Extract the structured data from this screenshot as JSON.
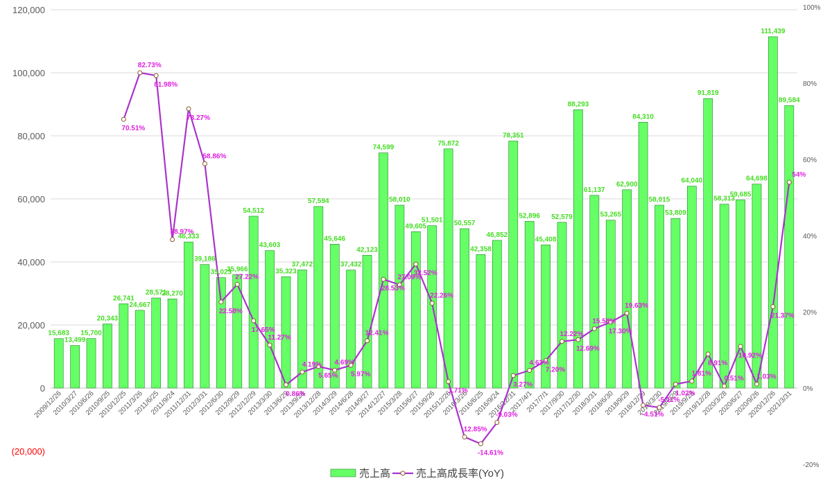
{
  "chart_data": {
    "type": "bar",
    "categories": [
      "2009/12/26",
      "2010/3/27",
      "2010/6/26",
      "2010/9/25",
      "2010/12/25",
      "2011/3/26",
      "2011/6/25",
      "2011/9/24",
      "2011/12/31",
      "2012/3/31",
      "2012/6/30",
      "2012/9/29",
      "2012/12/29",
      "2013/3/30",
      "2013/6/29",
      "2013/9/28",
      "2013/12/28",
      "2014/3/29",
      "2014/6/28",
      "2014/9/27",
      "2014/12/27",
      "2015/3/28",
      "2015/6/27",
      "2015/9/26",
      "2015/12/26",
      "2016/3/26",
      "2016/6/25",
      "2016/9/24",
      "2016/12/31",
      "2017/4/1",
      "2017/7/1",
      "2017/9/30",
      "2017/12/30",
      "2018/3/31",
      "2018/6/30",
      "2018/9/29",
      "2018/12/29",
      "2019/3/30",
      "2019/6/29",
      "2019/9/28",
      "2019/12/28",
      "2020/3/28",
      "2020/6/27",
      "2020/9/26",
      "2020/12/26",
      "2021/3/31"
    ],
    "series": [
      {
        "name": "売上高",
        "type": "bar",
        "axis": "left",
        "color": "#66ff66",
        "values": [
          15683,
          13499,
          15700,
          20343,
          26741,
          24667,
          28571,
          28270,
          46333,
          39186,
          35023,
          35966,
          54512,
          43603,
          35323,
          37472,
          57594,
          45646,
          37432,
          42123,
          74599,
          58010,
          49605,
          51501,
          75872,
          50557,
          42358,
          46852,
          78351,
          52896,
          45408,
          52579,
          88293,
          61137,
          53265,
          62900,
          84310,
          58015,
          53809,
          64040,
          91819,
          58313,
          59685,
          64698,
          111439,
          89584
        ],
        "labels": [
          "15,683",
          "13,499",
          "15,700",
          "20,343",
          "26,741",
          "24,667",
          "28,571",
          "28,270",
          "46,333",
          "39,186",
          "35,023",
          "35,966",
          "54,512",
          "43,603",
          "35,323",
          "37,472",
          "57,594",
          "45,646",
          "37,432",
          "42,123",
          "74,599",
          "58,010",
          "49,605",
          "51,501",
          "75,872",
          "50,557",
          "42,358",
          "46,852",
          "78,351",
          "52,896",
          "45,408",
          "52,579",
          "88,293",
          "61,137",
          "53,265",
          "62,900",
          "84,310",
          "58,015",
          "53,809",
          "64,040",
          "91,819",
          "58,313",
          "59,685",
          "64,698",
          "111,439",
          "89,584"
        ]
      },
      {
        "name": "売上高成長率(YoY)",
        "type": "line",
        "axis": "right",
        "color": "#aa33cc",
        "label_color": "#e020e0",
        "values": [
          null,
          null,
          null,
          null,
          70.51,
          82.73,
          81.98,
          38.97,
          73.27,
          58.86,
          22.58,
          27.22,
          17.65,
          11.27,
          0.86,
          4.19,
          5.65,
          4.69,
          5.97,
          12.41,
          28.53,
          27.09,
          32.52,
          22.26,
          1.71,
          -12.85,
          -14.61,
          -9.03,
          3.27,
          4.63,
          7.2,
          12.22,
          12.69,
          15.58,
          17.3,
          19.63,
          -4.51,
          -5.11,
          1.02,
          1.81,
          8.91,
          0.51,
          10.92,
          1.03,
          21.37,
          54
        ],
        "labels": [
          "",
          "",
          "",
          "",
          "70.51%",
          "82.73%",
          "81.98%",
          "38.97%",
          "73.27%",
          "58.86%",
          "22.58%",
          "27.22%",
          "17.65%",
          "11.27%",
          "0.86%",
          "4.19%",
          "5.65%",
          "4.69%",
          "5.97%",
          "12.41%",
          "28.53%",
          "27.09%",
          "32.52%",
          "22.26%",
          "1.71%",
          "-12.85%",
          "-14.61%",
          "-9.03%",
          "3.27%",
          "4.63%",
          "7.20%",
          "12.22%",
          "12.69%",
          "15.58%",
          "17.30%",
          "19.63%",
          "-4.51%",
          "-5.11%",
          "1.02%",
          "1.81%",
          "8.91%",
          "0.51%",
          "10.92%",
          "1.03%",
          "21.37%",
          "54%"
        ]
      }
    ],
    "y_left": {
      "range": [
        -20000,
        120000
      ],
      "ticks": [
        {
          "v": 120000,
          "label": "120,000"
        },
        {
          "v": 100000,
          "label": "100,000"
        },
        {
          "v": 80000,
          "label": "80,000"
        },
        {
          "v": 60000,
          "label": "60,000"
        },
        {
          "v": 40000,
          "label": "40,000"
        },
        {
          "v": 20000,
          "label": "20,000"
        },
        {
          "v": 0,
          "label": "0"
        },
        {
          "v": -20000,
          "label": "(20,000)"
        }
      ],
      "negative_color": "#ff0000"
    },
    "y_right": {
      "range": [
        -20,
        100
      ],
      "ticks": [
        {
          "v": 100,
          "label": "100%"
        },
        {
          "v": 80,
          "label": "80%"
        },
        {
          "v": 60,
          "label": "60%"
        },
        {
          "v": 40,
          "label": "40%"
        },
        {
          "v": 20,
          "label": "20%"
        },
        {
          "v": 0,
          "label": "0%"
        },
        {
          "v": -20,
          "label": "-20%"
        }
      ]
    },
    "grid": true,
    "legend": "bottom-center",
    "bar_label_color": "#44dd22",
    "grid_color": "#d9d9d9",
    "axis_label_color": "#595959"
  }
}
